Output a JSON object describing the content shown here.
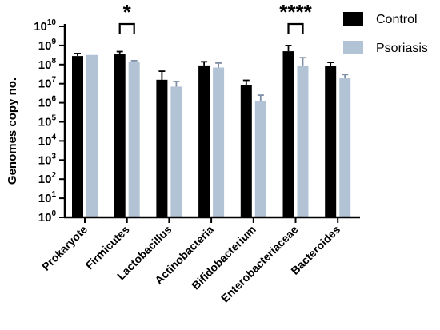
{
  "chart_data": {
    "type": "bar",
    "ylabel": "Genomes copy no.",
    "yscale": "log",
    "ylim": [
      1,
      10000000000
    ],
    "ytick_base": "10",
    "ytick_exponents": [
      "0",
      "1",
      "2",
      "3",
      "4",
      "5",
      "6",
      "7",
      "8",
      "9",
      "10"
    ],
    "categories": [
      "Prokaryote",
      "Firmicutes",
      "Lactobacillus",
      "Actinobacteria",
      "Bifidobacterium",
      "Enterobacteriaceae",
      "Bacteroides"
    ],
    "series": [
      {
        "name": "Control",
        "color": "#000000",
        "values": [
          280000000,
          350000000,
          16000000,
          90000000,
          8000000,
          500000000,
          85000000
        ],
        "error_upper": [
          380000000,
          480000000,
          45000000,
          140000000,
          15000000,
          1000000000,
          130000000
        ]
      },
      {
        "name": "Psoriasis",
        "color": "#b3c3d6",
        "values": [
          320000000,
          140000000,
          7000000,
          70000000,
          1200000,
          90000000,
          19000000
        ],
        "error_upper": [
          320000000,
          160000000,
          13000000,
          120000000,
          2500000,
          230000000,
          30000000
        ]
      }
    ],
    "significance": [
      {
        "category": "Firmicutes",
        "label": "*"
      },
      {
        "category": "Enterobacteriaceae",
        "label": "****"
      }
    ],
    "legend_position": "top-right"
  }
}
